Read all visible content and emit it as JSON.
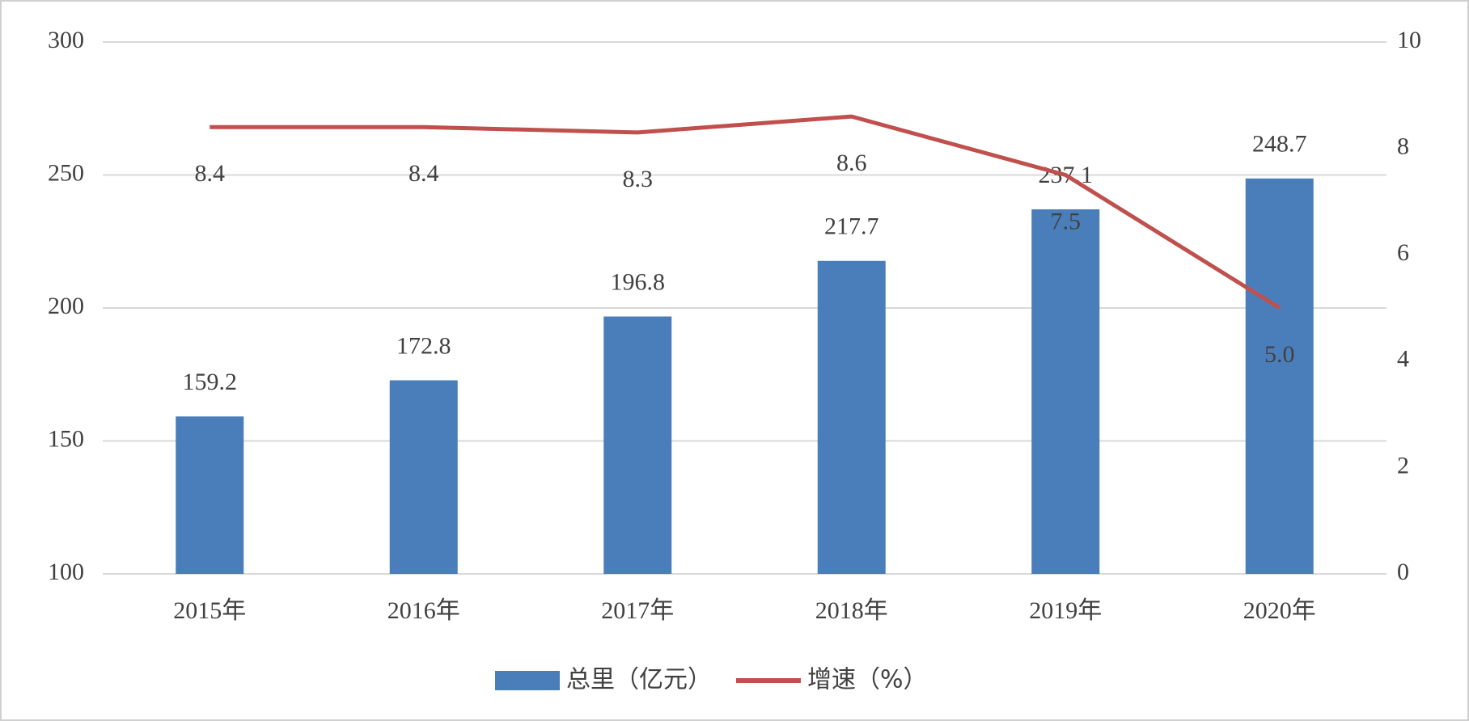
{
  "chart_data": {
    "type": "bar",
    "categories": [
      "2015年",
      "2016年",
      "2017年",
      "2018年",
      "2019年",
      "2020年"
    ],
    "series": [
      {
        "name": "总里（亿元）",
        "type": "bar",
        "color": "#4a7ebb",
        "values": [
          159.2,
          172.8,
          196.8,
          217.7,
          237.1,
          248.7
        ]
      },
      {
        "name": "增速（%）",
        "type": "line",
        "axis": "y2",
        "color": "#c0504d",
        "values": [
          8.4,
          8.4,
          8.3,
          8.6,
          7.5,
          5.0
        ],
        "value_labels": [
          "8.4",
          "8.4",
          "8.3",
          "8.6",
          "7.5",
          "5.0"
        ]
      }
    ],
    "ylim": [
      100,
      300
    ],
    "yticks": [
      100,
      150,
      200,
      250,
      300
    ],
    "y2lim": [
      0,
      10
    ],
    "y2ticks": [
      0,
      2,
      4,
      6,
      8,
      10
    ],
    "grid": true,
    "legend": "bottom"
  }
}
